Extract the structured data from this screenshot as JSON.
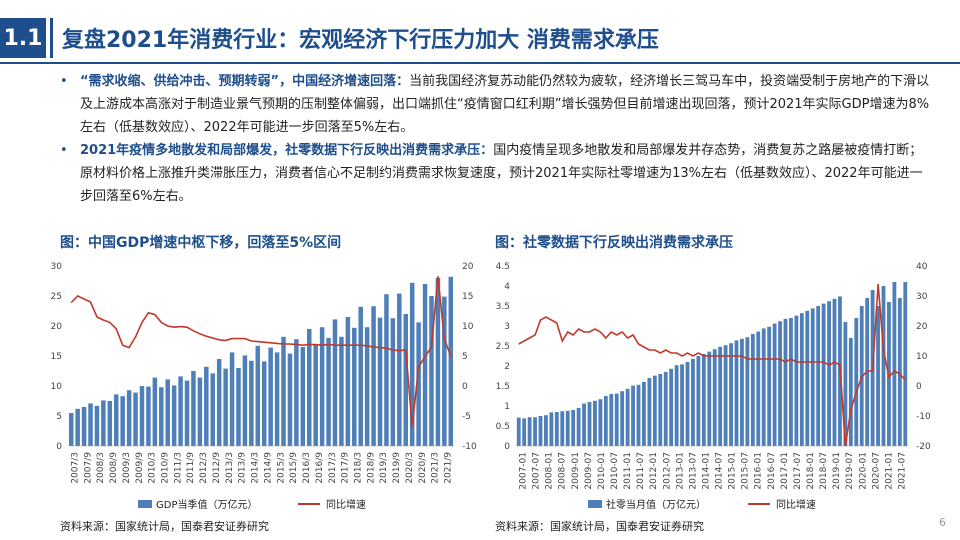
{
  "header": {
    "badge": "1.1",
    "title": "复盘2021年消费行业：宏观经济下行压力加大 消费需求承压"
  },
  "bullets": [
    {
      "highlight": "“需求收缩、供给冲击、预期转弱”，中国经济增速回落：",
      "text": "当前我国经济复苏动能仍然较为疲软，经济增长三驾马车中，投资端受制于房地产的下滑以及上游成本高涨对于制造业景气预期的压制整体偏弱，出口端抓住“疫情窗口红利期”增长强势但目前增速出现回落，预计2021年实际GDP增速为8%左右（低基数效应）、2022年可能进一步回落至5%左右。"
    },
    {
      "highlight": "2021年疫情多地散发和局部爆发，社零数据下行反映出消费需求承压：",
      "text": "国内疫情呈现多地散发和局部爆发并存态势，消费复苏之路屡被疫情打断；原材料价格上涨推升类滞胀压力，消费者信心不足制约消费需求恢复速度，预计2021年实际社零增速为13%左右（低基数效应）、2022年可能进一步回落至6%左右。"
    }
  ],
  "chart_titles": {
    "left": "图：中国GDP增速中枢下移，回落至5%区间",
    "right": "图：社零数据下行反映出消费需求承压"
  },
  "sources": {
    "left": "资料来源：国家统计局，国泰君安证券研究",
    "right": "资料来源：国家统计局，国泰君安证券研究"
  },
  "page_number": "6",
  "colors": {
    "bar": "#4f7fb8",
    "line": "#c0392b",
    "accent": "#1f4e8c"
  },
  "chart_data": [
    {
      "type": "bar",
      "title": "图：中国GDP增速中枢下移，回落至5%区间",
      "x_ticks": [
        "2007/3",
        "2007/9",
        "2008/3",
        "2008/9",
        "2009/3",
        "2009/9",
        "2010/3",
        "2010/9",
        "2011/3",
        "2011/9",
        "2012/3",
        "2012/9",
        "2013/3",
        "2013/9",
        "2014/3",
        "2014/9",
        "2015/3",
        "2015/9",
        "2016/3",
        "2016/9",
        "2017/3",
        "2017/9",
        "2018/3",
        "2018/9",
        "2019/3",
        "2019/9",
        "2020/3",
        "2020/9",
        "2021/3",
        "2021/9"
      ],
      "left_axis": {
        "min": 0,
        "max": 30,
        "ticks": [
          0,
          5,
          10,
          15,
          20,
          25,
          30
        ]
      },
      "right_axis": {
        "min": -10,
        "max": 20,
        "ticks": [
          -10,
          -5,
          0,
          5,
          10,
          15,
          20
        ]
      },
      "series": [
        {
          "name": "GDP当季值（万亿元）",
          "type": "bar",
          "axis": "left",
          "values": [
            5.5,
            6.2,
            6.5,
            7.1,
            6.7,
            7.6,
            7.5,
            8.6,
            8.3,
            9.3,
            8.9,
            10.0,
            9.9,
            11.4,
            9.8,
            11.1,
            10.1,
            11.6,
            10.9,
            12.5,
            11.4,
            13.2,
            12.1,
            14.5,
            12.9,
            15.6,
            13.0,
            15.1,
            14.2,
            16.7,
            14.1,
            16.4,
            15.6,
            18.2,
            15.4,
            17.8,
            16.5,
            19.5,
            16.9,
            19.8,
            18.0,
            21.1,
            18.2,
            21.5,
            19.7,
            23.2,
            19.8,
            23.3,
            21.4,
            25.3,
            21.3,
            25.4,
            22.0,
            27.2,
            20.6,
            27.0,
            25.0,
            28.0,
            24.9,
            28.2
          ]
        },
        {
          "name": "同比增速",
          "type": "line",
          "axis": "right",
          "values": [
            13.9,
            15.0,
            14.5,
            14.0,
            11.5,
            11.0,
            10.6,
            9.5,
            6.8,
            6.4,
            8.2,
            10.6,
            12.2,
            11.9,
            10.6,
            10.0,
            9.8,
            9.9,
            9.8,
            9.2,
            8.7,
            8.3,
            8.0,
            7.7,
            7.6,
            7.9,
            7.9,
            7.9,
            7.5,
            7.4,
            7.3,
            7.2,
            7.1,
            7.0,
            7.0,
            6.9,
            6.8,
            6.9,
            6.9,
            6.8,
            6.9,
            6.8,
            6.8,
            6.8,
            6.8,
            6.8,
            6.7,
            6.5,
            6.4,
            6.3,
            6.0,
            5.9,
            6.0,
            -6.8,
            3.2,
            4.9,
            6.5,
            18.3,
            7.9,
            4.9
          ]
        }
      ],
      "legend_position": "bottom"
    },
    {
      "type": "bar",
      "title": "图：社零数据下行反映出消费需求承压",
      "x_ticks": [
        "2007-01",
        "2007-07",
        "2008-01",
        "2008-07",
        "2009-01",
        "2009-07",
        "2010-01",
        "2010-07",
        "2011-01",
        "2011-07",
        "2012-01",
        "2012-07",
        "2013-01",
        "2013-07",
        "2014-01",
        "2014-07",
        "2015-01",
        "2015-07",
        "2016-01",
        "2016-07",
        "2017-01",
        "2017-07",
        "2018-01",
        "2018-07",
        "2019-01",
        "2019-07",
        "2020-01",
        "2020-07",
        "2021-01",
        "2021-07"
      ],
      "left_axis": {
        "min": 0,
        "max": 4.5,
        "ticks": [
          0,
          0.5,
          1,
          1.5,
          2,
          2.5,
          3,
          3.5,
          4,
          4.5
        ]
      },
      "right_axis": {
        "min": -20,
        "max": 40,
        "ticks": [
          -20,
          -10,
          0,
          10,
          20,
          30,
          40
        ]
      },
      "series": [
        {
          "name": "社零当月值（万亿元）",
          "type": "bar",
          "axis": "left",
          "values": [
            0.71,
            0.69,
            0.72,
            0.72,
            0.75,
            0.77,
            0.84,
            0.85,
            0.87,
            0.88,
            0.9,
            0.95,
            1.06,
            1.1,
            1.13,
            1.17,
            1.25,
            1.3,
            1.31,
            1.37,
            1.43,
            1.51,
            1.53,
            1.6,
            1.7,
            1.76,
            1.8,
            1.85,
            1.93,
            2.02,
            2.04,
            2.1,
            2.18,
            2.25,
            2.3,
            2.36,
            2.42,
            2.48,
            2.52,
            2.57,
            2.64,
            2.68,
            2.72,
            2.8,
            2.86,
            2.94,
            2.98,
            3.06,
            3.12,
            3.18,
            3.2,
            3.26,
            3.32,
            3.38,
            3.44,
            3.5,
            3.56,
            3.62,
            3.68,
            3.74,
            3.1,
            2.7,
            3.2,
            3.5,
            3.7,
            3.9,
            3.5,
            4.0,
            3.6,
            4.1,
            3.7,
            4.1
          ]
        },
        {
          "name": "同比增速",
          "type": "line",
          "axis": "right",
          "values": [
            14,
            15,
            16,
            17,
            22,
            23,
            22,
            21,
            15,
            18,
            17,
            19,
            18,
            18,
            19,
            18,
            16,
            18,
            17,
            18,
            16,
            17,
            14,
            13,
            12,
            12,
            11,
            12,
            11,
            11,
            10,
            11,
            10,
            11,
            10,
            10,
            10,
            10,
            10,
            10,
            10,
            10,
            9,
            9,
            9,
            9,
            9,
            9,
            9,
            8,
            9,
            8,
            8,
            8,
            8,
            8,
            8,
            7,
            8,
            7,
            -20,
            -8,
            -2,
            3,
            5,
            5,
            34,
            12,
            3,
            5,
            4,
            2
          ]
        }
      ],
      "legend_position": "bottom"
    }
  ]
}
